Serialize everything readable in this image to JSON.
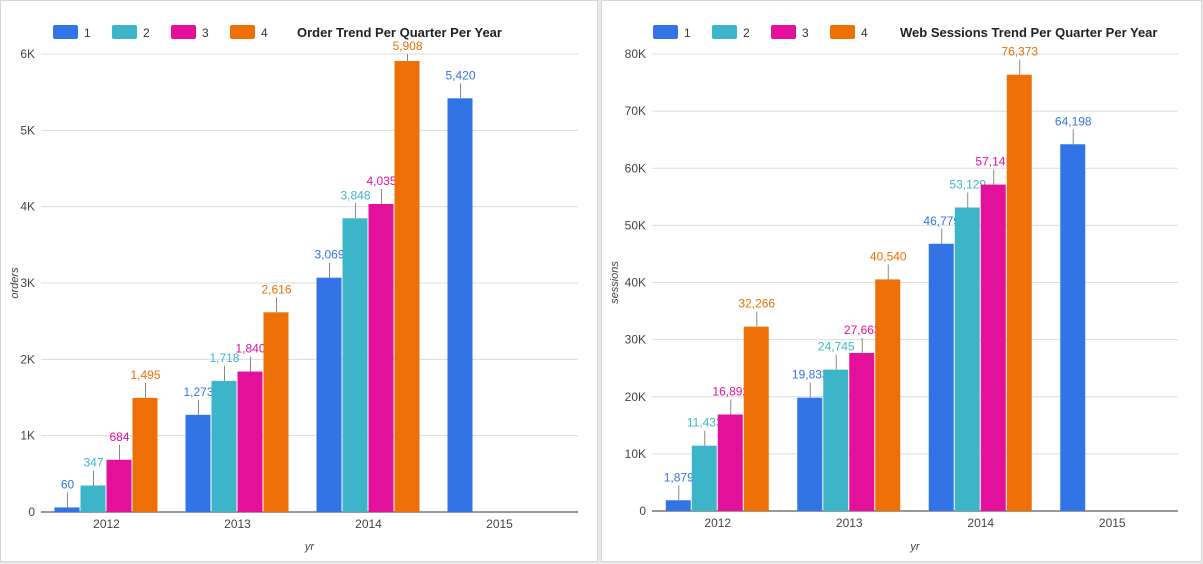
{
  "chart_data": [
    {
      "type": "bar",
      "title": "Order Trend Per Quarter Per Year",
      "xlabel": "yr",
      "ylabel": "orders",
      "categories": [
        "2012",
        "2013",
        "2014",
        "2015"
      ],
      "yticks": [
        "0",
        "1K",
        "2K",
        "3K",
        "4K",
        "5K",
        "6K"
      ],
      "ylim": [
        0,
        6000
      ],
      "grid": true,
      "legend": "top-left",
      "series": [
        {
          "name": "1",
          "color": "#3274e6",
          "values": [
            60,
            1273,
            3069,
            5420
          ],
          "labels": [
            "60",
            "1,273",
            "3,069",
            "5,420"
          ]
        },
        {
          "name": "2",
          "color": "#3db5c9",
          "values": [
            347,
            1718,
            3848,
            null
          ],
          "labels": [
            "347",
            "1,718",
            "3,848",
            ""
          ]
        },
        {
          "name": "3",
          "color": "#e3109b",
          "values": [
            684,
            1840,
            4035,
            null
          ],
          "labels": [
            "684",
            "1,840",
            "4,035",
            ""
          ]
        },
        {
          "name": "4",
          "color": "#ee6f06",
          "values": [
            1495,
            2616,
            5908,
            null
          ],
          "labels": [
            "1,495",
            "2,616",
            "5,908",
            ""
          ]
        }
      ]
    },
    {
      "type": "bar",
      "title": "Web Sessions Trend Per Quarter Per Year",
      "xlabel": "yr",
      "ylabel": "sessions",
      "categories": [
        "2012",
        "2013",
        "2014",
        "2015"
      ],
      "yticks": [
        "0",
        "10K",
        "20K",
        "30K",
        "40K",
        "50K",
        "60K",
        "70K",
        "80K"
      ],
      "ylim": [
        0,
        80000
      ],
      "grid": true,
      "legend": "top-left",
      "series": [
        {
          "name": "1",
          "color": "#3274e6",
          "values": [
            1879,
            19833,
            46779,
            64198
          ],
          "labels": [
            "1,879",
            "19,833",
            "46,779",
            "64,198"
          ]
        },
        {
          "name": "2",
          "color": "#3db5c9",
          "values": [
            11433,
            24745,
            53129,
            null
          ],
          "labels": [
            "11,433",
            "24,745",
            "53,129",
            ""
          ]
        },
        {
          "name": "3",
          "color": "#e3109b",
          "values": [
            16892,
            27663,
            57141,
            null
          ],
          "labels": [
            "16,892",
            "27,663",
            "57,141",
            ""
          ]
        },
        {
          "name": "4",
          "color": "#ee6f06",
          "values": [
            32266,
            40540,
            76373,
            null
          ],
          "labels": [
            "32,266",
            "40,540",
            "76,373",
            ""
          ]
        }
      ]
    }
  ]
}
